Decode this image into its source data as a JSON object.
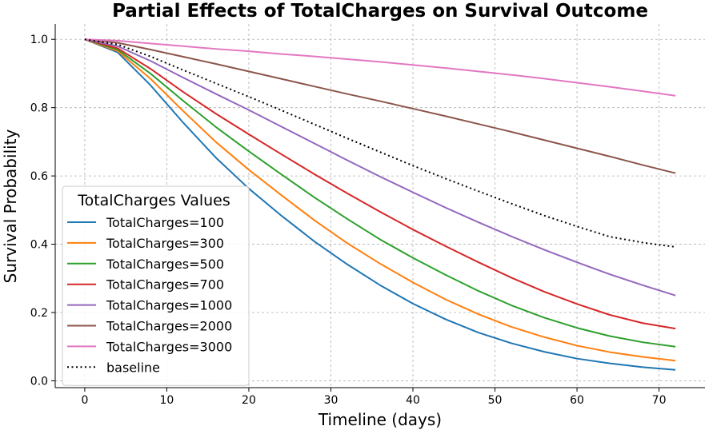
{
  "chart_data": {
    "type": "line",
    "title": "Partial Effects of TotalCharges on Survival Outcome",
    "xlabel": "Timeline (days)",
    "ylabel": "Survival Probability",
    "xlim": [
      -3.6,
      75.6
    ],
    "ylim": [
      -0.02,
      1.045
    ],
    "xticks": [
      0,
      10,
      20,
      30,
      40,
      50,
      60,
      70
    ],
    "yticks": [
      0.0,
      0.2,
      0.4,
      0.6,
      0.8,
      1.0
    ],
    "xtick_labels": [
      "0",
      "10",
      "20",
      "30",
      "40",
      "50",
      "60",
      "70"
    ],
    "ytick_labels": [
      "0.0",
      "0.2",
      "0.4",
      "0.6",
      "0.8",
      "1.0"
    ],
    "grid": true,
    "legend": {
      "title": "TotalCharges Values",
      "placement": "lower-left"
    },
    "x": [
      0,
      4,
      8,
      12,
      16,
      20,
      24,
      28,
      32,
      36,
      40,
      44,
      48,
      52,
      56,
      60,
      64,
      68,
      72
    ],
    "series": [
      {
        "name": "TotalCharges=100",
        "color": "#1f77b4",
        "style": "solid",
        "values": [
          1.0,
          0.962,
          0.866,
          0.756,
          0.653,
          0.563,
          0.483,
          0.408,
          0.341,
          0.28,
          0.226,
          0.18,
          0.141,
          0.11,
          0.085,
          0.065,
          0.051,
          0.04,
          0.032
        ]
      },
      {
        "name": "TotalCharges=300",
        "color": "#ff7f0e",
        "style": "solid",
        "values": [
          1.0,
          0.966,
          0.885,
          0.79,
          0.699,
          0.618,
          0.543,
          0.47,
          0.403,
          0.343,
          0.288,
          0.238,
          0.195,
          0.158,
          0.128,
          0.103,
          0.084,
          0.07,
          0.059
        ]
      },
      {
        "name": "TotalCharges=500",
        "color": "#2ca02c",
        "style": "solid",
        "values": [
          1.0,
          0.97,
          0.9,
          0.82,
          0.743,
          0.672,
          0.604,
          0.537,
          0.474,
          0.414,
          0.36,
          0.31,
          0.263,
          0.221,
          0.185,
          0.155,
          0.131,
          0.113,
          0.1
        ]
      },
      {
        "name": "TotalCharges=700",
        "color": "#d62728",
        "style": "solid",
        "values": [
          1.0,
          0.974,
          0.914,
          0.846,
          0.782,
          0.722,
          0.663,
          0.605,
          0.549,
          0.495,
          0.443,
          0.394,
          0.347,
          0.302,
          0.261,
          0.225,
          0.193,
          0.169,
          0.153
        ]
      },
      {
        "name": "TotalCharges=1000",
        "color": "#9467bd",
        "style": "solid",
        "values": [
          1.0,
          0.98,
          0.937,
          0.888,
          0.84,
          0.793,
          0.744,
          0.695,
          0.646,
          0.598,
          0.552,
          0.507,
          0.464,
          0.423,
          0.384,
          0.347,
          0.312,
          0.28,
          0.25
        ]
      },
      {
        "name": "TotalCharges=2000",
        "color": "#8c564b",
        "style": "solid",
        "values": [
          1.0,
          0.99,
          0.97,
          0.949,
          0.928,
          0.906,
          0.884,
          0.862,
          0.84,
          0.819,
          0.797,
          0.775,
          0.752,
          0.729,
          0.705,
          0.681,
          0.657,
          0.632,
          0.608
        ]
      },
      {
        "name": "TotalCharges=3000",
        "color": "#e377c2",
        "style": "solid",
        "values": [
          1.0,
          0.996,
          0.988,
          0.98,
          0.972,
          0.965,
          0.957,
          0.95,
          0.942,
          0.934,
          0.925,
          0.916,
          0.906,
          0.896,
          0.885,
          0.873,
          0.861,
          0.848,
          0.835
        ]
      },
      {
        "name": "baseline",
        "color": "#000000",
        "style": "dotted",
        "values": [
          1.0,
          0.985,
          0.95,
          0.91,
          0.871,
          0.832,
          0.792,
          0.751,
          0.71,
          0.67,
          0.63,
          0.592,
          0.555,
          0.519,
          0.484,
          0.452,
          0.422,
          0.405,
          0.392
        ]
      }
    ]
  }
}
